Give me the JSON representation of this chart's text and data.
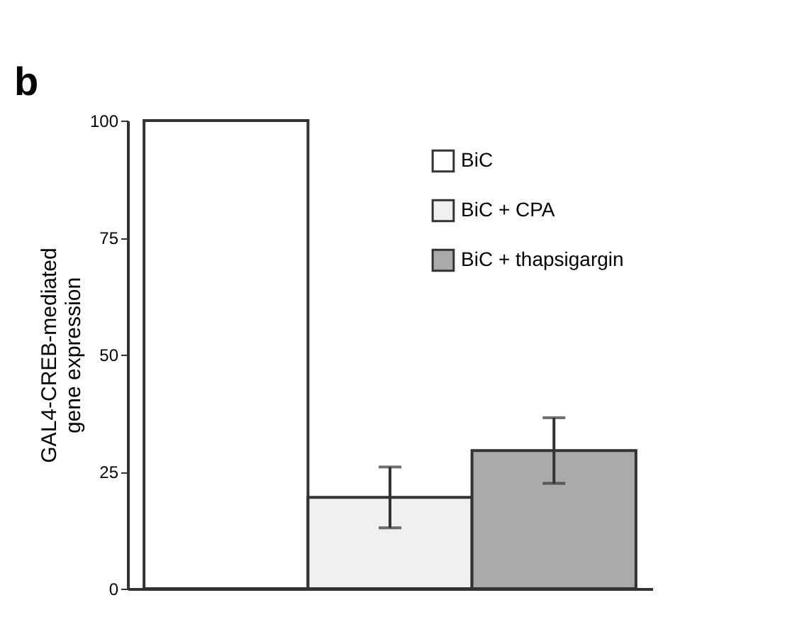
{
  "chart_data": {
    "type": "bar",
    "ylabel": "GAL4-CREB-mediated\ngene expression",
    "annotations": [
      "b"
    ],
    "categories": [
      null,
      null,
      null
    ],
    "series": [
      {
        "name": "BiC",
        "color": "#ffffff",
        "values": [
          100,
          null,
          null
        ]
      },
      {
        "name": "BiC + CPA",
        "color": "#f0f0f0",
        "values": [
          null,
          19.5,
          null
        ],
        "errors": [
          null,
          6.5,
          null
        ]
      },
      {
        "name": "BiC + thapsigargin",
        "color": "#aaaaaa",
        "values": [
          null,
          null,
          29.5
        ],
        "errors": [
          null,
          null,
          7
        ]
      }
    ],
    "ylim": [
      0,
      100
    ],
    "yticks": [
      0,
      25,
      50,
      75,
      100
    ],
    "grid": false,
    "legend": "top right",
    "tick_labels": "y"
  }
}
